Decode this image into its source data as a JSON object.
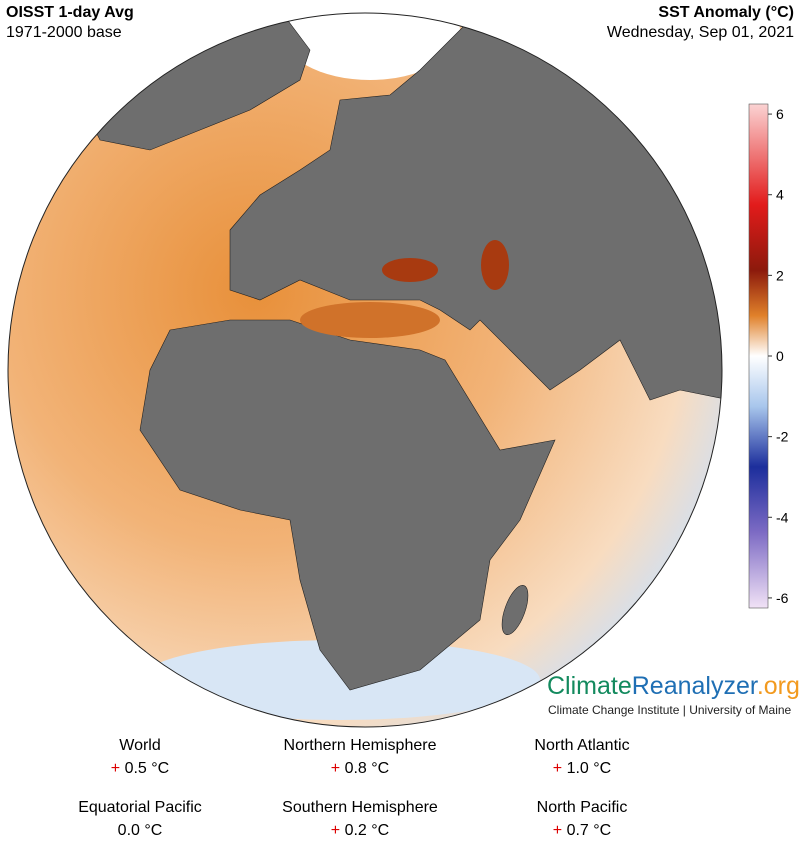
{
  "header": {
    "title": "OISST 1-day Avg",
    "subtitle": "1971-2000 base",
    "right_title": "SST Anomaly (°C)",
    "date": "Wednesday, Sep 01, 2021"
  },
  "colorbar": {
    "range": [
      -6.25,
      6.25
    ],
    "ticks": [
      6,
      4,
      2,
      0,
      -2,
      -4,
      -6
    ]
  },
  "brand": {
    "part1": "Climate",
    "part2": "Reanalyzer",
    "part3": ".org",
    "tagline": "Climate Change Institute | University of Maine"
  },
  "stats": [
    {
      "name": "World",
      "sign": "+",
      "value": "0.5 °C"
    },
    {
      "name": "Northern Hemisphere",
      "sign": "+",
      "value": "0.8 °C"
    },
    {
      "name": "North Atlantic",
      "sign": "+",
      "value": "1.0 °C"
    },
    {
      "name": "Equatorial Pacific",
      "value": "0.0 °C"
    },
    {
      "name": "Southern Hemisphere",
      "sign": "+",
      "value": "0.2 °C"
    },
    {
      "name": "North Pacific",
      "sign": "+",
      "value": "0.7 °C"
    }
  ]
}
